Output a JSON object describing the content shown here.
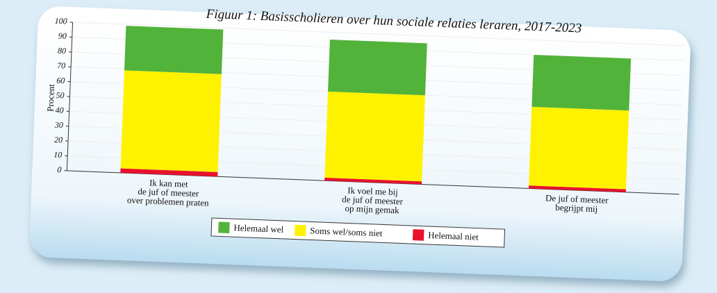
{
  "chart_data": {
    "type": "stacked_bar",
    "title": "Figuur 1: Basisscholieren over hun sociale relaties leraren, 2017-2023",
    "y_label": "Procent",
    "categories": [
      [
        "Ik kan met",
        "de juf of meester",
        "over problemen praten"
      ],
      [
        "Ik voel me bij",
        "de juf of meester",
        "op mijn gemak"
      ],
      [
        "De juf of meester",
        "begrijpt mij"
      ]
    ],
    "series": [
      {
        "name": "Helemaal wel",
        "color": "#52b33a",
        "values": [
          30,
          35,
          35
        ]
      },
      {
        "name": "Soms wel/soms niet",
        "color": "#fff200",
        "values": [
          66,
          58,
          53
        ]
      },
      {
        "name": "Helemaal niet",
        "color": "#e8122c",
        "values": [
          3,
          2,
          2
        ]
      }
    ],
    "ylim": [
      0,
      100
    ],
    "yticks": [
      0,
      10,
      20,
      30,
      40,
      50,
      60,
      70,
      80,
      90,
      100
    ],
    "grid": true,
    "legend": "bottom"
  }
}
